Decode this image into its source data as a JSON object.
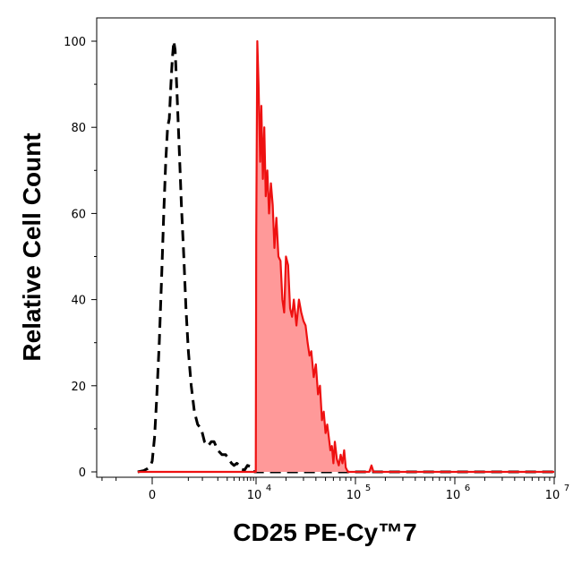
{
  "chart_data": {
    "type": "area",
    "xlabel": "CD25 PE-Cy™7",
    "ylabel": "Relative Cell Count",
    "y_ticks": [
      "0",
      "20",
      "40",
      "60",
      "80",
      "100"
    ],
    "y_tick_values": [
      0,
      20,
      40,
      60,
      80,
      100
    ],
    "x_ticks": [
      {
        "base": "0",
        "exp": ""
      },
      {
        "base": "10",
        "exp": "4"
      },
      {
        "base": "10",
        "exp": "5"
      },
      {
        "base": "10",
        "exp": "6"
      },
      {
        "base": "10",
        "exp": "7"
      }
    ],
    "x_tick_values": [
      0,
      10000,
      100000,
      1000000,
      10000000
    ],
    "x_scale": "biexponential",
    "ylim": [
      0,
      100
    ],
    "grid": false,
    "colors": {
      "stained_line": "#ee1111",
      "stained_fill": "#ff9999",
      "control_line": "#000000"
    },
    "series": [
      {
        "style": "dashed-black",
        "points": [
          [
            -120,
            0
          ],
          [
            -60,
            0.3
          ],
          [
            -30,
            0.8
          ],
          [
            -10,
            1.5
          ],
          [
            0,
            2.5
          ],
          [
            15,
            8
          ],
          [
            30,
            17
          ],
          [
            50,
            30
          ],
          [
            70,
            45
          ],
          [
            90,
            60
          ],
          [
            110,
            72
          ],
          [
            130,
            80
          ],
          [
            150,
            82
          ],
          [
            170,
            90
          ],
          [
            190,
            96
          ],
          [
            210,
            100
          ],
          [
            230,
            98
          ],
          [
            260,
            88
          ],
          [
            300,
            75
          ],
          [
            340,
            62
          ],
          [
            390,
            50
          ],
          [
            440,
            38
          ],
          [
            500,
            28
          ],
          [
            580,
            20
          ],
          [
            680,
            14
          ],
          [
            800,
            11
          ],
          [
            950,
            10
          ],
          [
            1100,
            7
          ],
          [
            1300,
            6
          ],
          [
            1500,
            7
          ],
          [
            1700,
            7
          ],
          [
            2000,
            5
          ],
          [
            2400,
            4
          ],
          [
            2800,
            4
          ],
          [
            3200,
            3
          ],
          [
            3600,
            2
          ],
          [
            4000,
            1.5
          ],
          [
            4500,
            2
          ],
          [
            5000,
            1.5
          ],
          [
            5500,
            0.6
          ],
          [
            6200,
            0.4
          ],
          [
            7000,
            1.5
          ],
          [
            7800,
            1.3
          ],
          [
            8500,
            0.3
          ],
          [
            9500,
            0
          ],
          [
            12000,
            0
          ],
          [
            30000,
            0
          ],
          [
            60000,
            0
          ],
          [
            10000000,
            0
          ]
        ]
      },
      {
        "style": "filled-red",
        "points": [
          [
            -120,
            0
          ],
          [
            5000,
            0
          ],
          [
            9900,
            0
          ],
          [
            10050,
            55
          ],
          [
            10300,
            100
          ],
          [
            10600,
            90
          ],
          [
            11000,
            72
          ],
          [
            11300,
            85
          ],
          [
            11700,
            68
          ],
          [
            12100,
            80
          ],
          [
            12500,
            64
          ],
          [
            13000,
            70
          ],
          [
            13500,
            60
          ],
          [
            14100,
            67
          ],
          [
            14700,
            62
          ],
          [
            15300,
            52
          ],
          [
            16000,
            59
          ],
          [
            16800,
            50
          ],
          [
            17600,
            49
          ],
          [
            18400,
            40
          ],
          [
            19200,
            37
          ],
          [
            20000,
            50
          ],
          [
            21000,
            48
          ],
          [
            22000,
            38
          ],
          [
            23000,
            36
          ],
          [
            24000,
            40
          ],
          [
            25500,
            34
          ],
          [
            27000,
            40
          ],
          [
            28500,
            37
          ],
          [
            30000,
            35
          ],
          [
            31500,
            34
          ],
          [
            33000,
            30
          ],
          [
            34500,
            27
          ],
          [
            36000,
            28
          ],
          [
            38000,
            22
          ],
          [
            40000,
            25
          ],
          [
            42000,
            18
          ],
          [
            44000,
            20
          ],
          [
            46000,
            12
          ],
          [
            48000,
            14
          ],
          [
            50000,
            9
          ],
          [
            52000,
            11
          ],
          [
            54000,
            8
          ],
          [
            56000,
            5
          ],
          [
            58000,
            6
          ],
          [
            60000,
            2
          ],
          [
            62000,
            7
          ],
          [
            65000,
            3
          ],
          [
            68000,
            1.5
          ],
          [
            71000,
            4
          ],
          [
            74000,
            2
          ],
          [
            77000,
            5
          ],
          [
            80000,
            1
          ],
          [
            84000,
            0
          ],
          [
            100000,
            0
          ],
          [
            138000,
            0
          ],
          [
            145000,
            1.5
          ],
          [
            152000,
            0
          ],
          [
            300000,
            0
          ],
          [
            10000000,
            0
          ]
        ]
      }
    ]
  }
}
